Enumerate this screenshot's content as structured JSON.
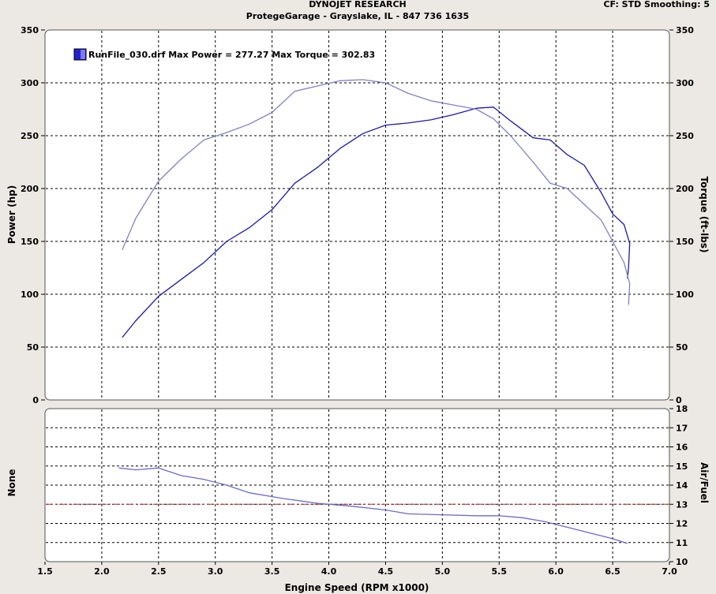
{
  "header": {
    "title": "DYNOJET RESEARCH",
    "subtitle": "ProtegeGarage - Grayslake, IL - 847 736 1635",
    "settings": "CF: STD  Smoothing: 5"
  },
  "colors": {
    "background": "#ece9e4",
    "plot_bg": "#ffffff",
    "power": "#1a1aa8",
    "torque": "#8080c8",
    "air_fuel": "#6a6acc",
    "target_line": "#b03030",
    "legend_swatch": "#2222cc"
  },
  "legend": {
    "text": "RunFile_030.drf Max Power = 277.27 Max Torque = 302.83"
  },
  "chart_data": [
    {
      "type": "line",
      "name": "power-torque",
      "xlabel": "",
      "ylabel": "Power (hp)",
      "ylabel_right": "Torque (ft-lbs)",
      "xlim": [
        1.5,
        7.0
      ],
      "ylim": [
        0,
        350
      ],
      "x_ticks": [
        1.5,
        2.0,
        2.5,
        3.0,
        3.5,
        4.0,
        4.5,
        5.0,
        5.5,
        6.0,
        6.5,
        7.0
      ],
      "y_ticks": [
        "0",
        "50",
        "100",
        "150",
        "200",
        "250",
        "300",
        "350"
      ],
      "y_ticks_right": [
        "0",
        "50",
        "100",
        "150",
        "200",
        "250",
        "300",
        "350"
      ],
      "grid": true,
      "legend_placement": "top-left",
      "series": [
        {
          "role": "power",
          "x": [
            2.18,
            2.3,
            2.5,
            2.7,
            2.9,
            3.1,
            3.3,
            3.5,
            3.7,
            3.9,
            4.1,
            4.3,
            4.5,
            4.7,
            4.9,
            5.1,
            5.3,
            5.45,
            5.6,
            5.8,
            5.95,
            6.1,
            6.25,
            6.4,
            6.5,
            6.6,
            6.65,
            6.64,
            6.63
          ],
          "y": [
            59,
            75,
            98,
            114,
            130,
            150,
            163,
            180,
            205,
            220,
            238,
            252,
            260,
            262,
            265,
            270,
            276,
            277,
            264,
            248,
            246,
            232,
            222,
            196,
            176,
            166,
            148,
            125,
            115
          ]
        },
        {
          "role": "torque",
          "x": [
            2.18,
            2.3,
            2.5,
            2.7,
            2.9,
            3.1,
            3.3,
            3.5,
            3.7,
            3.9,
            4.1,
            4.3,
            4.5,
            4.7,
            4.9,
            5.1,
            5.3,
            5.45,
            5.6,
            5.8,
            5.95,
            6.1,
            6.25,
            6.4,
            6.5,
            6.6,
            6.65,
            6.64
          ],
          "y": [
            142,
            172,
            207,
            228,
            246,
            253,
            261,
            272,
            292,
            297,
            302,
            303,
            300,
            290,
            283,
            279,
            275,
            266,
            250,
            225,
            205,
            200,
            185,
            170,
            150,
            130,
            110,
            90
          ]
        }
      ]
    },
    {
      "type": "line",
      "name": "air-fuel",
      "xlabel": "Engine Speed (RPM x1000)",
      "ylabel": "None",
      "ylabel_right": "Air/Fuel",
      "xlim": [
        1.5,
        7.0
      ],
      "ylim": [
        10,
        18
      ],
      "x_ticks": [
        "1.5",
        "2.0",
        "2.5",
        "3.0",
        "3.5",
        "4.0",
        "4.5",
        "5.0",
        "5.5",
        "6.0",
        "6.5",
        "7.0"
      ],
      "y_ticks_right": [
        "10",
        "11",
        "12",
        "13",
        "14",
        "15",
        "16",
        "17",
        "18"
      ],
      "target": 13.0,
      "grid": true,
      "series": [
        {
          "role": "air-fuel",
          "x": [
            2.15,
            2.3,
            2.5,
            2.7,
            2.9,
            3.1,
            3.3,
            3.6,
            3.9,
            4.2,
            4.5,
            4.7,
            5.0,
            5.3,
            5.5,
            5.7,
            5.9,
            6.1,
            6.3,
            6.5,
            6.63
          ],
          "y": [
            14.9,
            14.8,
            14.9,
            14.5,
            14.3,
            14.0,
            13.6,
            13.3,
            13.05,
            12.9,
            12.7,
            12.5,
            12.45,
            12.4,
            12.4,
            12.3,
            12.1,
            11.8,
            11.5,
            11.2,
            10.95
          ]
        }
      ]
    }
  ]
}
